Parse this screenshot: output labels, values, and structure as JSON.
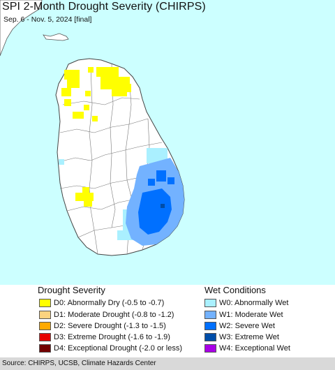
{
  "map": {
    "title": "SPI 2-Month Drought Severity (CHIRPS)",
    "subtitle": "Sep. 6 - Nov. 5, 2024 [final]",
    "colors": {
      "ocean": "#ccffff",
      "land": "#ffffff",
      "border": "#555555"
    }
  },
  "legend": {
    "drought": {
      "heading": "Drought Severity",
      "items": [
        {
          "label": "D0: Abnormally Dry (-0.5 to -0.7)",
          "color": "#ffff00"
        },
        {
          "label": "D1: Moderate Drought (-0.8 to -1.2)",
          "color": "#fcd37f"
        },
        {
          "label": "D2: Severe Drought (-1.3 to -1.5)",
          "color": "#ffaa00"
        },
        {
          "label": "D3: Extreme Drought (-1.6 to -1.9)",
          "color": "#e60000"
        },
        {
          "label": "D4: Exceptional Drought (-2.0 or less)",
          "color": "#730000"
        }
      ]
    },
    "wet": {
      "heading": "Wet Conditions",
      "items": [
        {
          "label": "W0: Abnormally Wet",
          "color": "#aaf0ff"
        },
        {
          "label": "W1: Moderate Wet",
          "color": "#73b2ff"
        },
        {
          "label": "W2: Severe Wet",
          "color": "#0070ff"
        },
        {
          "label": "W3: Extreme Wet",
          "color": "#004da8"
        },
        {
          "label": "W4: Exceptional Wet",
          "color": "#a900e6"
        }
      ]
    }
  },
  "footer": {
    "source": "Source: CHIRPS, UCSB, Climate Hazards Center"
  }
}
